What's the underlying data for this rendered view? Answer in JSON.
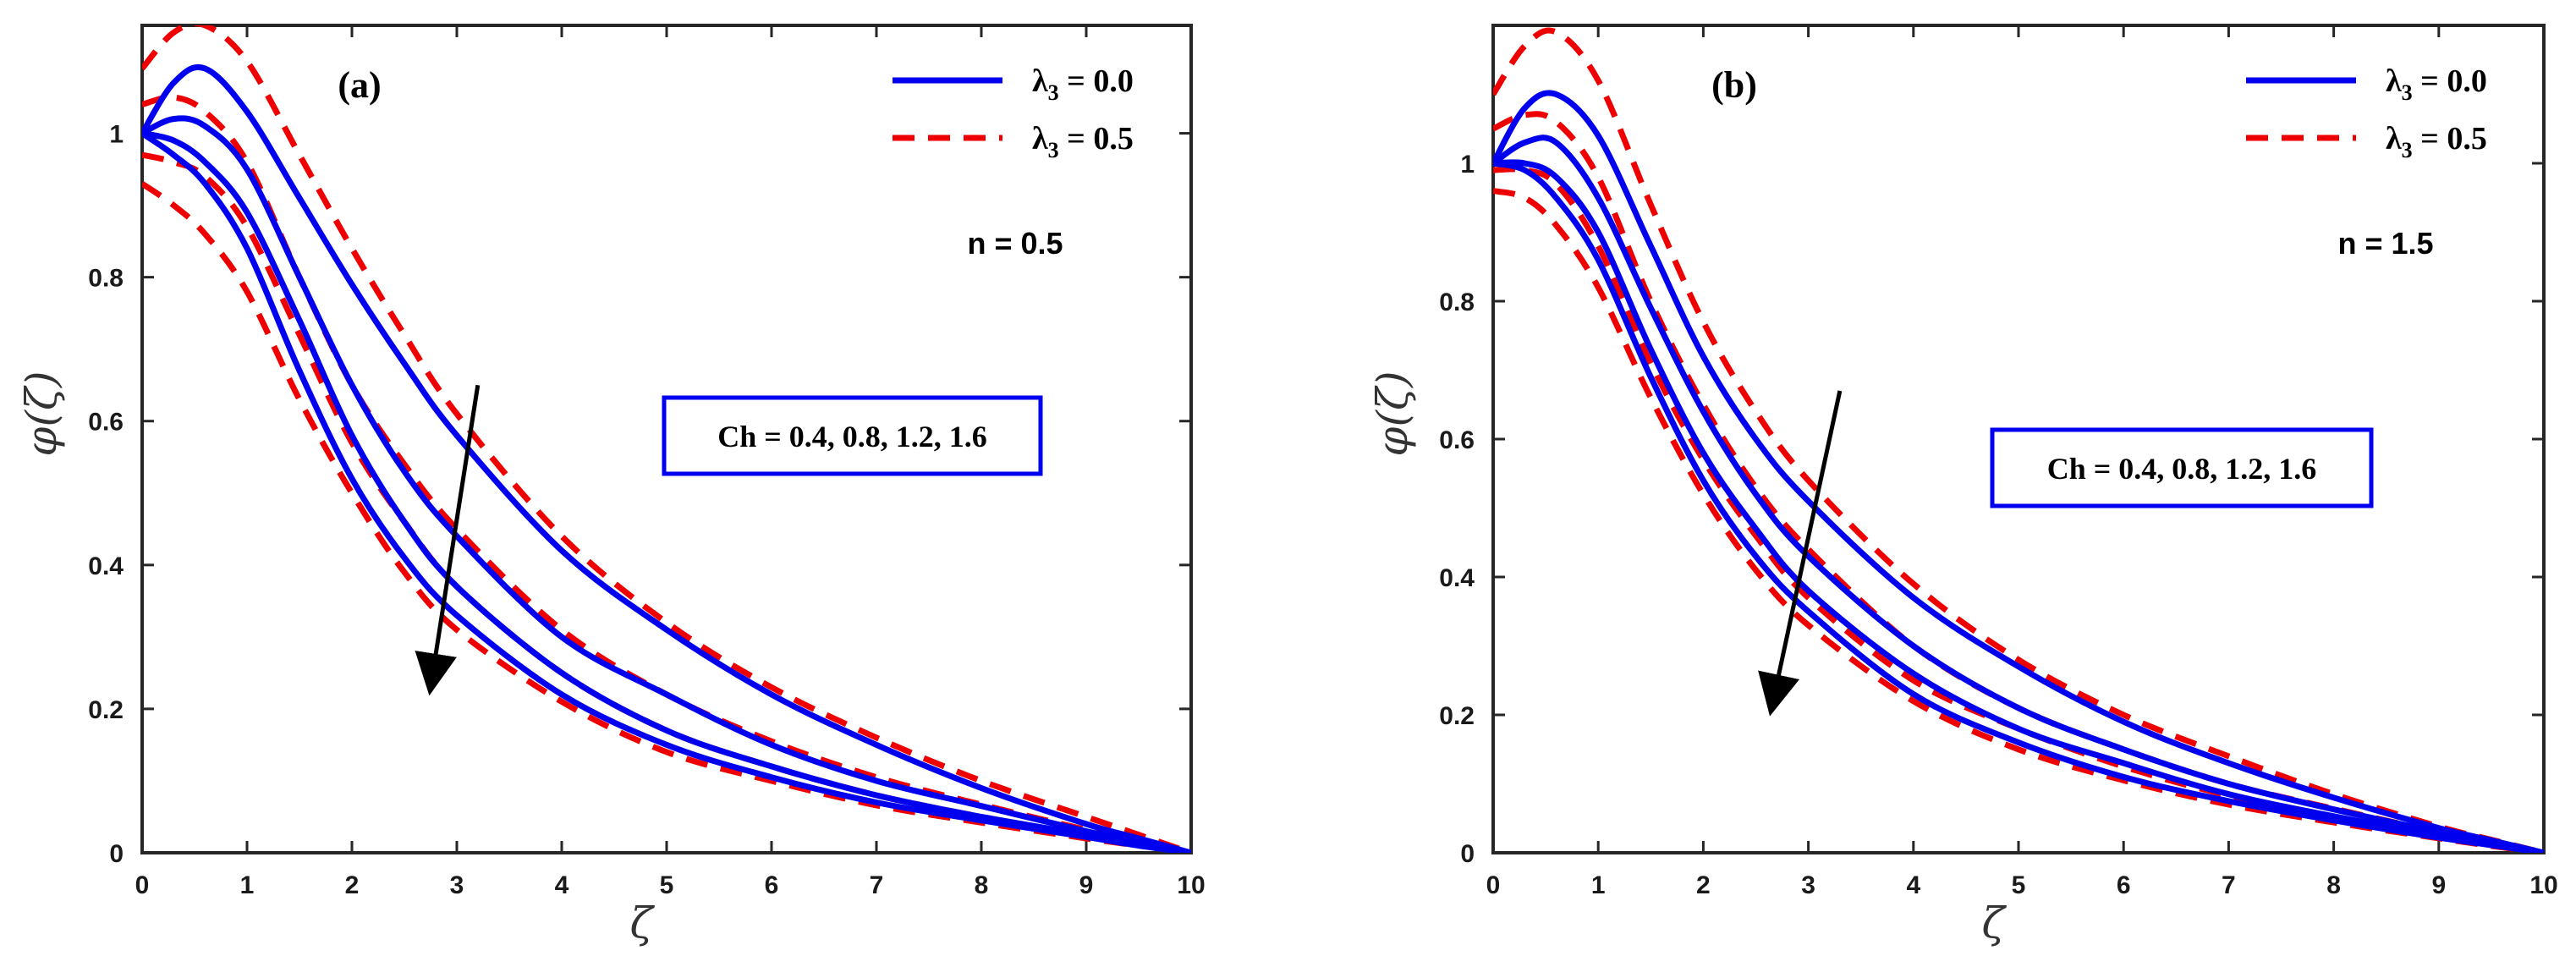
{
  "chart_data": [
    {
      "type": "line",
      "panel": "(a)",
      "parameter_text": "n = 0.5",
      "annotation": "Ch = 0.4, 0.8, 1.2, 1.6",
      "xlabel": "ζ",
      "ylabel": "φ(ζ)",
      "xlim": [
        0,
        10
      ],
      "ylim": [
        0,
        1.15
      ],
      "xticks": [
        0,
        1,
        2,
        3,
        4,
        5,
        6,
        7,
        8,
        9,
        10
      ],
      "yticks": [
        0,
        0.2,
        0.4,
        0.6,
        0.8,
        1
      ],
      "ytick_labels": [
        "0",
        "0.2",
        "0.4",
        "0.6",
        "0.8",
        "1"
      ],
      "legend": [
        {
          "label": "λ",
          "sub": "3",
          "value": " = 0.0",
          "color": "#0000ee",
          "style": "solid"
        },
        {
          "label": "λ",
          "sub": "3",
          "value": " = 0.5",
          "color": "#ee0000",
          "style": "dashed"
        }
      ],
      "arrow": {
        "from": [
          3.2,
          0.65
        ],
        "to": [
          2.75,
          0.23
        ]
      },
      "x": [
        0,
        0.3,
        0.6,
        1.0,
        1.5,
        2,
        2.5,
        3,
        4,
        5,
        6,
        7,
        8,
        9,
        9.5,
        10
      ],
      "series": [
        {
          "name": "Ch=0.4, λ3=0.0",
          "group": "λ3 = 0.0",
          "values": [
            1.0,
            1.07,
            1.09,
            1.03,
            0.91,
            0.79,
            0.68,
            0.58,
            0.42,
            0.31,
            0.22,
            0.15,
            0.09,
            0.04,
            0.02,
            0
          ]
        },
        {
          "name": "Ch=0.8, λ3=0.0",
          "group": "λ3 = 0.0",
          "values": [
            1.0,
            1.02,
            1.01,
            0.95,
            0.8,
            0.65,
            0.53,
            0.44,
            0.3,
            0.22,
            0.15,
            0.1,
            0.065,
            0.03,
            0.015,
            0
          ]
        },
        {
          "name": "Ch=1.2, λ3=0.0",
          "group": "λ3 = 0.0",
          "values": [
            1.0,
            0.99,
            0.96,
            0.89,
            0.74,
            0.58,
            0.46,
            0.37,
            0.25,
            0.17,
            0.12,
            0.08,
            0.05,
            0.025,
            0.012,
            0
          ]
        },
        {
          "name": "Ch=1.6, λ3=0.0",
          "group": "λ3 = 0.0",
          "values": [
            1.0,
            0.97,
            0.93,
            0.84,
            0.67,
            0.52,
            0.41,
            0.33,
            0.22,
            0.15,
            0.105,
            0.07,
            0.045,
            0.022,
            0.01,
            0
          ]
        },
        {
          "name": "Ch=0.4, λ3=0.5",
          "group": "λ3 = 0.5",
          "values": [
            1.09,
            1.14,
            1.15,
            1.1,
            0.97,
            0.84,
            0.72,
            0.61,
            0.44,
            0.32,
            0.23,
            0.16,
            0.1,
            0.05,
            0.025,
            0
          ]
        },
        {
          "name": "Ch=0.8, λ3=0.5",
          "group": "λ3 = 0.5",
          "values": [
            1.04,
            1.05,
            1.03,
            0.96,
            0.8,
            0.65,
            0.54,
            0.45,
            0.31,
            0.22,
            0.155,
            0.105,
            0.067,
            0.032,
            0.016,
            0
          ]
        },
        {
          "name": "Ch=1.2, λ3=0.5",
          "group": "λ3 = 0.5",
          "values": [
            0.97,
            0.96,
            0.94,
            0.87,
            0.72,
            0.57,
            0.46,
            0.37,
            0.25,
            0.17,
            0.12,
            0.08,
            0.05,
            0.024,
            0.012,
            0
          ]
        },
        {
          "name": "Ch=1.6, λ3=0.5",
          "group": "λ3 = 0.5",
          "values": [
            0.93,
            0.9,
            0.86,
            0.78,
            0.63,
            0.5,
            0.39,
            0.31,
            0.21,
            0.14,
            0.1,
            0.066,
            0.042,
            0.02,
            0.01,
            0
          ]
        }
      ]
    },
    {
      "type": "line",
      "panel": "(b)",
      "parameter_text": "n = 1.5",
      "annotation": "Ch = 0.4, 0.8, 1.2, 1.6",
      "xlabel": "ζ",
      "ylabel": "φ(ζ)",
      "xlim": [
        0,
        10
      ],
      "ylim": [
        0,
        1.2
      ],
      "xticks": [
        0,
        1,
        2,
        3,
        4,
        5,
        6,
        7,
        8,
        9,
        10
      ],
      "yticks": [
        0,
        0.2,
        0.4,
        0.6,
        0.8,
        1
      ],
      "ytick_labels": [
        "0",
        "0.2",
        "0.4",
        "0.6",
        "0.8",
        "1"
      ],
      "legend": [
        {
          "label": "λ",
          "sub": "3",
          "value": " = 0.0",
          "color": "#0000ee",
          "style": "solid"
        },
        {
          "label": "λ",
          "sub": "3",
          "value": " = 0.5",
          "color": "#ee0000",
          "style": "dashed"
        }
      ],
      "arrow": {
        "from": [
          3.3,
          0.67
        ],
        "to": [
          2.65,
          0.21
        ]
      },
      "x": [
        0,
        0.3,
        0.6,
        1.0,
        1.5,
        2,
        2.5,
        3,
        4,
        5,
        6,
        7,
        8,
        9,
        9.5,
        10
      ],
      "series": [
        {
          "name": "Ch=0.4, λ3=0.0",
          "group": "λ3 = 0.0",
          "values": [
            1.0,
            1.08,
            1.1,
            1.04,
            0.88,
            0.72,
            0.6,
            0.51,
            0.37,
            0.27,
            0.19,
            0.13,
            0.08,
            0.036,
            0.018,
            0
          ]
        },
        {
          "name": "Ch=0.8, λ3=0.0",
          "group": "λ3 = 0.0",
          "values": [
            1.0,
            1.03,
            1.03,
            0.95,
            0.79,
            0.64,
            0.52,
            0.43,
            0.3,
            0.21,
            0.15,
            0.1,
            0.063,
            0.03,
            0.015,
            0
          ]
        },
        {
          "name": "Ch=1.2, λ3=0.0",
          "group": "λ3 = 0.0",
          "values": [
            1.0,
            1.0,
            0.98,
            0.9,
            0.73,
            0.58,
            0.47,
            0.38,
            0.26,
            0.18,
            0.13,
            0.085,
            0.053,
            0.025,
            0.012,
            0
          ]
        },
        {
          "name": "Ch=1.6, λ3=0.0",
          "group": "λ3 = 0.0",
          "values": [
            1.0,
            0.99,
            0.95,
            0.86,
            0.69,
            0.54,
            0.43,
            0.35,
            0.23,
            0.16,
            0.11,
            0.075,
            0.047,
            0.022,
            0.011,
            0
          ]
        },
        {
          "name": "Ch=0.4, λ3=0.5",
          "group": "λ3 = 0.5",
          "values": [
            1.1,
            1.17,
            1.19,
            1.12,
            0.94,
            0.77,
            0.64,
            0.54,
            0.39,
            0.28,
            0.2,
            0.14,
            0.085,
            0.038,
            0.019,
            0
          ]
        },
        {
          "name": "Ch=0.8, λ3=0.5",
          "group": "λ3 = 0.5",
          "values": [
            1.05,
            1.07,
            1.06,
            0.98,
            0.8,
            0.65,
            0.53,
            0.44,
            0.3,
            0.21,
            0.15,
            0.1,
            0.064,
            0.03,
            0.015,
            0
          ]
        },
        {
          "name": "Ch=1.2, λ3=0.5",
          "group": "λ3 = 0.5",
          "values": [
            0.99,
            0.99,
            0.97,
            0.88,
            0.71,
            0.57,
            0.46,
            0.37,
            0.25,
            0.18,
            0.125,
            0.083,
            0.052,
            0.024,
            0.012,
            0
          ]
        },
        {
          "name": "Ch=1.6, λ3=0.5",
          "group": "λ3 = 0.5",
          "values": [
            0.96,
            0.95,
            0.91,
            0.82,
            0.66,
            0.52,
            0.41,
            0.33,
            0.22,
            0.15,
            0.105,
            0.07,
            0.044,
            0.021,
            0.01,
            0
          ]
        }
      ]
    }
  ]
}
